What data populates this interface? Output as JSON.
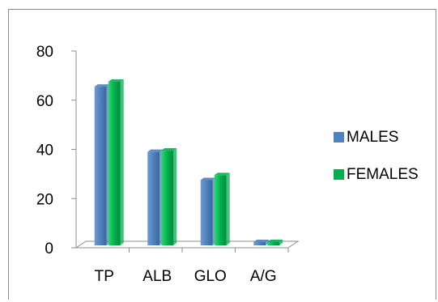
{
  "chart_data": {
    "type": "bar",
    "title": "",
    "xlabel": "",
    "ylabel": "",
    "categories": [
      "TP",
      "ALB",
      "GLO",
      "A/G"
    ],
    "series": [
      {
        "name": "MALES",
        "values": [
          64.5,
          38,
          26.5,
          1.3
        ],
        "color": "#4f81bd"
      },
      {
        "name": "FEMALES",
        "values": [
          66.5,
          38.5,
          28.5,
          1.3
        ],
        "color": "#00b050"
      }
    ],
    "ylim": [
      0,
      80
    ],
    "yticks": [
      "0",
      "20",
      "40",
      "60",
      "80"
    ],
    "grid": false,
    "legend_position": "right"
  }
}
